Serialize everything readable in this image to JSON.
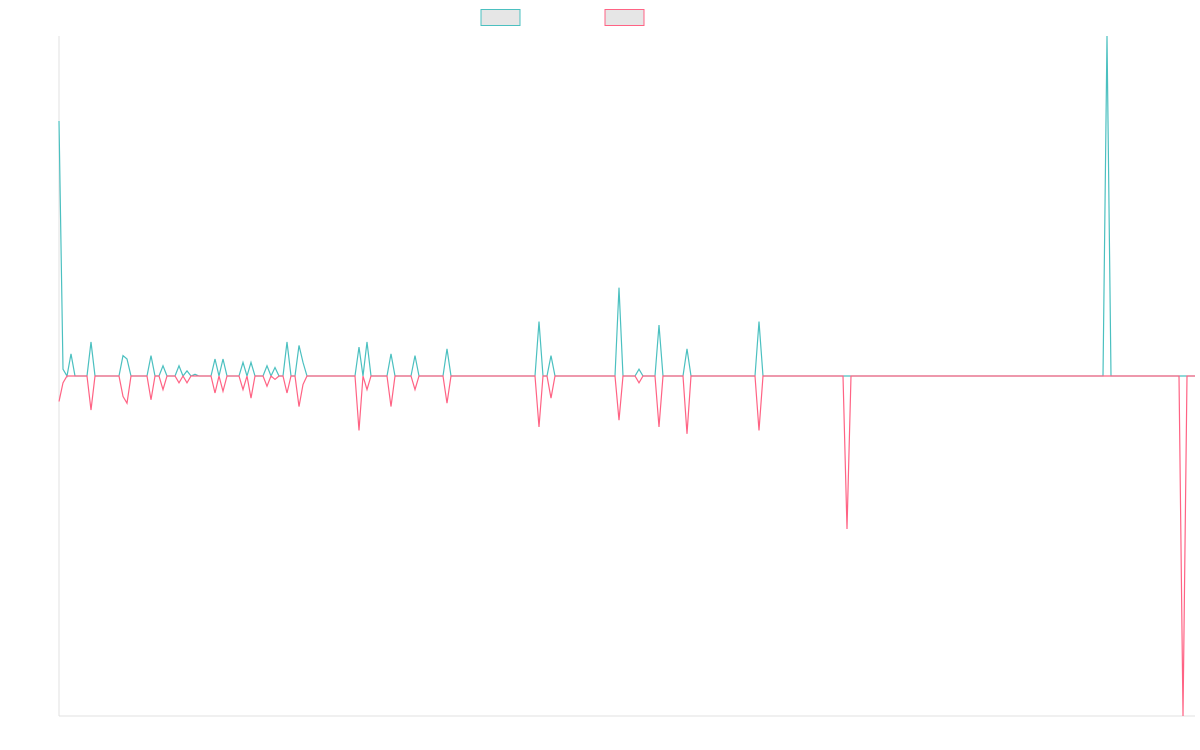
{
  "chart_data": {
    "type": "line",
    "ylim": [
      -100,
      100
    ],
    "series": [
      {
        "color": "#4bc0c0",
        "values": [
          75,
          2,
          0,
          6.5,
          0,
          0,
          0,
          0,
          10,
          0,
          0,
          0,
          0,
          0,
          0,
          0,
          6,
          5,
          0,
          0,
          0,
          0,
          0,
          6,
          0,
          0,
          3,
          0,
          0,
          0,
          3,
          0,
          1.5,
          0,
          0.5,
          0,
          0,
          0,
          0,
          5,
          0,
          5,
          0,
          0,
          0,
          0,
          4,
          0,
          4,
          0,
          0,
          0,
          3,
          0,
          2.5,
          0,
          0,
          10,
          0,
          0,
          9,
          4,
          0,
          0,
          0,
          0,
          0,
          0,
          0,
          0,
          0,
          0,
          0,
          0,
          0,
          8.5,
          0,
          10,
          0,
          0,
          0,
          0,
          0,
          6.5,
          0,
          0,
          0,
          0,
          0,
          6,
          0,
          0,
          0,
          0,
          0,
          0,
          0,
          8,
          0,
          0,
          0,
          0,
          0,
          0,
          0,
          0,
          0,
          0,
          0,
          0,
          0,
          0,
          0,
          0,
          0,
          0,
          0,
          0,
          0,
          0,
          16,
          0,
          0,
          6,
          0,
          0,
          0,
          0,
          0,
          0,
          0,
          0,
          0,
          0,
          0,
          0,
          0,
          0,
          0,
          0,
          26,
          0,
          0,
          0,
          0,
          2,
          0,
          0,
          0,
          0,
          15,
          0,
          0,
          0,
          0,
          0,
          0,
          8,
          0,
          0,
          0,
          0,
          0,
          0,
          0,
          0,
          0,
          0,
          0,
          0,
          0,
          0,
          0,
          0,
          0,
          16,
          0,
          0,
          0,
          0,
          0,
          0,
          0,
          0,
          0,
          0,
          0,
          0,
          0,
          0,
          0,
          0,
          0,
          0,
          0,
          0,
          0,
          0,
          0,
          0,
          0,
          0,
          0,
          0,
          0,
          0,
          0,
          0,
          0,
          0,
          0,
          0,
          0,
          0,
          0,
          0,
          0,
          0,
          0,
          0,
          0,
          0,
          0,
          0,
          0,
          0,
          0,
          0,
          0,
          0,
          0,
          0,
          0,
          0,
          0,
          0,
          0,
          0,
          0,
          0,
          0,
          0,
          0,
          0,
          0,
          0,
          0,
          0,
          0,
          0,
          0,
          0,
          0,
          0,
          0,
          0,
          0,
          0,
          0,
          0,
          0,
          0,
          100,
          0,
          0,
          0,
          0,
          0,
          0,
          0,
          0,
          0,
          0,
          0,
          0,
          0,
          0,
          0,
          0,
          0,
          0,
          0,
          0,
          0,
          0
        ]
      },
      {
        "color": "#ff6384",
        "values": [
          -7.5,
          -2,
          0,
          0,
          0,
          0,
          0,
          0,
          -10,
          0,
          0,
          0,
          0,
          0,
          0,
          0,
          -6,
          -8,
          0,
          0,
          0,
          0,
          0,
          -7,
          0,
          0,
          -4,
          0,
          0,
          0,
          -2,
          0,
          -2,
          0,
          0,
          0,
          0,
          0,
          0,
          -5,
          0,
          -4.5,
          0,
          0,
          0,
          0,
          -4,
          0,
          -6.5,
          0,
          0,
          0,
          -3,
          0,
          -1,
          0,
          0,
          -5,
          0,
          0,
          -9,
          -2.5,
          0,
          0,
          0,
          0,
          0,
          0,
          0,
          0,
          0,
          0,
          0,
          0,
          0,
          -16,
          0,
          -4,
          0,
          0,
          0,
          0,
          0,
          -9,
          0,
          0,
          0,
          0,
          0,
          -4,
          0,
          0,
          0,
          0,
          0,
          0,
          0,
          -8,
          0,
          0,
          0,
          0,
          0,
          0,
          0,
          0,
          0,
          0,
          0,
          0,
          0,
          0,
          0,
          0,
          0,
          0,
          0,
          0,
          0,
          0,
          -15,
          0,
          0,
          -6.5,
          0,
          0,
          0,
          0,
          0,
          0,
          0,
          0,
          0,
          0,
          0,
          0,
          0,
          0,
          0,
          0,
          -13,
          0,
          0,
          0,
          0,
          -2,
          0,
          0,
          0,
          0,
          -15,
          0,
          0,
          0,
          0,
          0,
          0,
          -17,
          0,
          0,
          0,
          0,
          0,
          0,
          0,
          0,
          0,
          0,
          0,
          0,
          0,
          0,
          0,
          0,
          0,
          -16,
          0,
          0,
          0,
          0,
          0,
          0,
          0,
          0,
          0,
          0,
          0,
          0,
          0,
          0,
          0,
          0,
          0,
          0,
          0,
          0,
          0,
          -45,
          0,
          0,
          0,
          0,
          0,
          0,
          0,
          0,
          0,
          0,
          0,
          0,
          0,
          0,
          0,
          0,
          0,
          0,
          0,
          0,
          0,
          0,
          0,
          0,
          0,
          0,
          0,
          0,
          0,
          0,
          0,
          0,
          0,
          0,
          0,
          0,
          0,
          0,
          0,
          0,
          0,
          0,
          0,
          0,
          0,
          0,
          0,
          0,
          0,
          0,
          0,
          0,
          0,
          0,
          0,
          0,
          0,
          0,
          0,
          0,
          0,
          0,
          0,
          0,
          0,
          0,
          0,
          0,
          0,
          0,
          0,
          0,
          0,
          0,
          0,
          0,
          0,
          0,
          0,
          0,
          0,
          0,
          0,
          -100,
          0,
          0,
          0
        ]
      }
    ]
  }
}
